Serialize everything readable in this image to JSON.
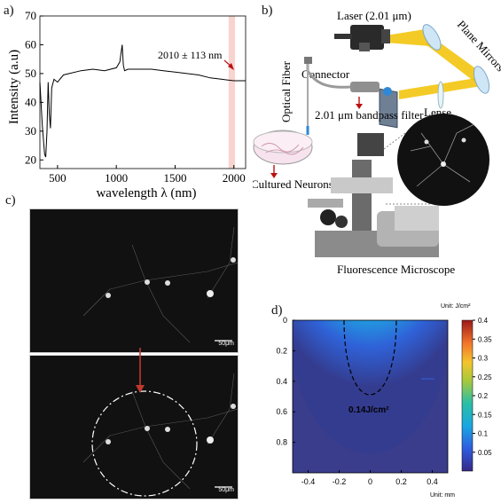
{
  "panels": {
    "a": "a)",
    "b": "b)",
    "c": "c)",
    "d": "d)"
  },
  "chart_data": [
    {
      "type": "line",
      "panel": "a",
      "ylabel": "Intensity (a.u)",
      "xlabel": "wavelength λ (nm)",
      "xlim": [
        350,
        2100
      ],
      "ylim": [
        17,
        70
      ],
      "xticks": [
        500,
        1000,
        1500,
        2000
      ],
      "yticks": [
        20,
        30,
        40,
        50,
        60,
        70
      ],
      "x": [
        350,
        370,
        390,
        400,
        410,
        420,
        430,
        440,
        450,
        470,
        500,
        550,
        600,
        700,
        800,
        900,
        1000,
        1030,
        1050,
        1060,
        1070,
        1100,
        1200,
        1300,
        1400,
        1500,
        1600,
        1700,
        1800,
        1900,
        2000,
        2100
      ],
      "y": [
        47,
        32,
        22,
        21,
        30,
        47,
        36,
        31,
        45,
        48,
        47,
        49.5,
        50,
        51,
        51.5,
        51,
        52,
        54,
        60,
        53,
        51,
        51.5,
        51.5,
        51.5,
        51,
        50.5,
        50,
        49.5,
        48.5,
        48,
        47.5,
        47.5
      ],
      "highlight_band": [
        1955,
        2010
      ],
      "highlight_color": "#f4b8b0",
      "line_color": "#000000",
      "annotation": "2010 ± 113 nm"
    },
    {
      "type": "heatmap",
      "panel": "d",
      "colorbar_title": "Unit: J/cm²",
      "colorbar_ticks": [
        0.4,
        0.35,
        0.3,
        0.25,
        0.2,
        0.15,
        0.1,
        0.05
      ],
      "xticks": [
        -0.4,
        -0.2,
        0,
        0.2,
        0.4
      ],
      "yticks": [
        0,
        0.2,
        0.4,
        0.6,
        0.8
      ],
      "xlim": [
        -0.5,
        0.5
      ],
      "ylim": [
        0,
        1
      ],
      "xunit": "Unit: mm",
      "contour_level": 0.14,
      "contour_label": "0.14J/cm²",
      "vmin": 0,
      "vmax": 0.4
    }
  ],
  "diagram": {
    "laser": "Laser (2.01 μm)",
    "mirrors": "Plane Mirrors",
    "fiber": "Optical Fiber",
    "connector": "Connector",
    "filter": "2.01 μm bandpass filter",
    "lense": "Lense",
    "neurons": "Cultured Neurons",
    "microscope": "Fluorescence Microscope"
  },
  "images": {
    "scale_top": "50μm",
    "scale_bottom": "50μm"
  }
}
